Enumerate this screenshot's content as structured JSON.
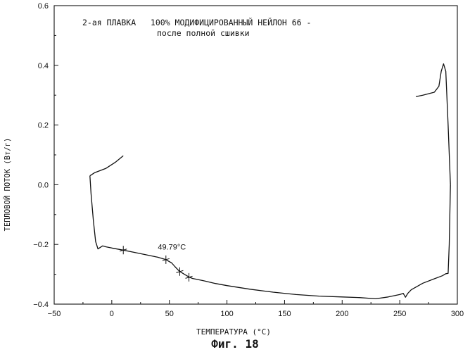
{
  "chart_data": {
    "type": "line",
    "title_line1": "2-ая ПЛАВКА   100% МОДИФИЦИРОВАННЫЙ НЕЙЛОН 66 -",
    "title_line2": "после полной сшивки",
    "xlabel": "ТЕМПЕРАТУРА (°C)",
    "ylabel": "ТЕПЛОВОЙ ПОТОК (Вт/г)",
    "xlim": [
      -50,
      300
    ],
    "ylim": [
      -0.4,
      0.6
    ],
    "x_ticks": [
      -50,
      0,
      50,
      100,
      150,
      200,
      250,
      300
    ],
    "y_ticks": [
      -0.4,
      -0.2,
      0.0,
      0.2,
      0.4,
      0.6
    ],
    "x_tick_labels": [
      "−50",
      "0",
      "50",
      "100",
      "150",
      "200",
      "250",
      "300"
    ],
    "y_tick_labels": [
      "−0.4",
      "−0.2",
      "0.0",
      "0.2",
      "0.4",
      "0.6"
    ],
    "grid": false,
    "annotation": {
      "text": "49.79°C",
      "x": 49.79,
      "y": -0.25
    },
    "markers": [
      {
        "x": 10,
        "y": -0.219
      },
      {
        "x": 47,
        "y": -0.251
      },
      {
        "x": 59,
        "y": -0.291
      },
      {
        "x": 67,
        "y": -0.31
      }
    ],
    "series": [
      {
        "x": [
          10,
          3,
          -5,
          -15,
          -19
        ],
        "y": [
          0.097,
          0.075,
          0.055,
          0.04,
          0.03
        ]
      },
      {
        "x": [
          -19,
          -18,
          -16,
          -14,
          -12,
          -10,
          -8,
          -5,
          0,
          10,
          20,
          30,
          40,
          47,
          52,
          55,
          58,
          60,
          63,
          67,
          70,
          80,
          90,
          100,
          120,
          140,
          160,
          180,
          200,
          215,
          229,
          240,
          250,
          253,
          255,
          257,
          260,
          270,
          280,
          287,
          290,
          292,
          293,
          294
        ],
        "y": [
          0.03,
          -0.03,
          -0.12,
          -0.19,
          -0.215,
          -0.21,
          -0.205,
          -0.208,
          -0.212,
          -0.219,
          -0.227,
          -0.235,
          -0.243,
          -0.251,
          -0.262,
          -0.275,
          -0.287,
          -0.293,
          -0.3,
          -0.309,
          -0.314,
          -0.322,
          -0.331,
          -0.338,
          -0.35,
          -0.36,
          -0.368,
          -0.373,
          -0.376,
          -0.378,
          -0.382,
          -0.376,
          -0.368,
          -0.364,
          -0.377,
          -0.364,
          -0.352,
          -0.33,
          -0.315,
          -0.305,
          -0.298,
          -0.297,
          -0.2,
          0.0
        ]
      },
      {
        "x": [
          294,
          292,
          290,
          288,
          286,
          284,
          280,
          270,
          264
        ],
        "y": [
          0.0,
          0.2,
          0.38,
          0.405,
          0.38,
          0.33,
          0.31,
          0.3,
          0.295
        ]
      }
    ]
  },
  "figure": {
    "caption": "Фиг. 18"
  }
}
